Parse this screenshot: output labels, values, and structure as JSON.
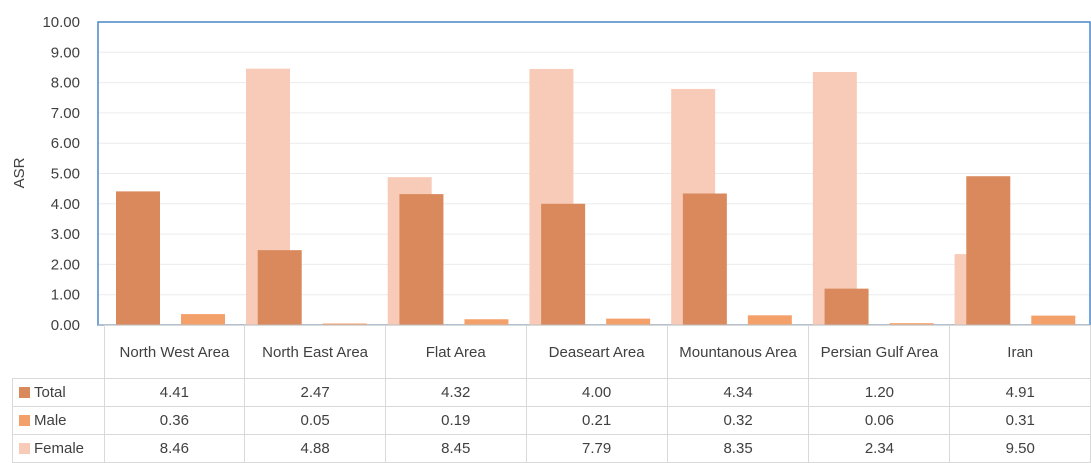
{
  "chart_data": {
    "type": "bar",
    "ylabel": "ASR",
    "ylim": [
      0,
      10
    ],
    "ytick_step": 1,
    "ytick_labels": [
      "0.00",
      "1.00",
      "2.00",
      "3.00",
      "4.00",
      "5.00",
      "6.00",
      "7.00",
      "8.00",
      "9.00",
      "10.00"
    ],
    "grid": true,
    "categories": [
      "North West Area",
      "North East Area",
      "Flat Area",
      "Deaseart Area",
      "Mountanous Area",
      "Persian Gulf Area",
      "Iran"
    ],
    "series": [
      {
        "name": "Total",
        "color": "#d9895b",
        "values": [
          4.41,
          2.47,
          4.32,
          4.0,
          4.34,
          1.2,
          4.91
        ],
        "display": [
          "4.41",
          "2.47",
          "4.32",
          "4.00",
          "4.34",
          "1.20",
          "4.91"
        ]
      },
      {
        "name": "Male",
        "color": "#f4a06a",
        "values": [
          0.36,
          0.05,
          0.19,
          0.21,
          0.32,
          0.06,
          0.31
        ],
        "display": [
          "0.36",
          "0.05",
          "0.19",
          "0.21",
          "0.32",
          "0.06",
          "0.31"
        ]
      },
      {
        "name": "Female",
        "color": "#f8cbb9",
        "values": [
          8.46,
          4.88,
          8.45,
          7.79,
          8.35,
          2.34,
          9.5
        ],
        "display": [
          "8.46",
          "4.88",
          "8.45",
          "7.79",
          "8.35",
          "2.34",
          "9.50"
        ]
      }
    ],
    "legend_position": "data-table"
  }
}
